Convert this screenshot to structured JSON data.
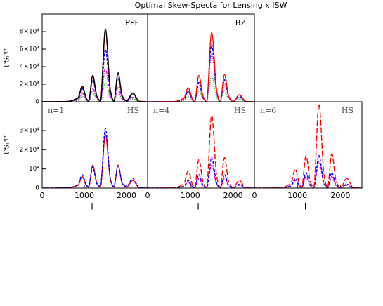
{
  "title": "Optimal Skew-Specta for Lensing x ISW",
  "chart_data": [
    {
      "type": "line",
      "labels": [
        "PPF"
      ],
      "xlim": [
        0,
        2500
      ],
      "ylim": [
        0,
        100000
      ],
      "ylabel": "l³Sₗᵒᵖᵗ",
      "yticks": [
        0,
        {
          "value": 20000,
          "label": "2×10⁴"
        },
        {
          "value": 40000,
          "label": "4×10⁴"
        },
        {
          "value": 60000,
          "label": "6×10⁴"
        },
        {
          "value": 80000,
          "label": "8×10⁴"
        }
      ],
      "x": [
        0,
        600,
        850,
        950,
        1050,
        1100,
        1200,
        1300,
        1380,
        1500,
        1620,
        1700,
        1800,
        1900,
        2000,
        2150,
        2300,
        2500
      ],
      "series": [
        {
          "color": "#00c000",
          "dash": "dotted",
          "values": [
            0,
            150,
            1500,
            6000,
            1200,
            400,
            10000,
            2000,
            400,
            22000,
            3300,
            400,
            11000,
            2200,
            400,
            3000,
            150,
            0
          ]
        },
        {
          "color": "#e000e0",
          "dash": "dashdot",
          "values": [
            0,
            200,
            2500,
            10000,
            2000,
            600,
            15000,
            3000,
            600,
            38000,
            5700,
            600,
            16000,
            3200,
            600,
            5000,
            250,
            0
          ]
        },
        {
          "color": "#0000ff",
          "dash": "dashed",
          "values": [
            0,
            250,
            3750,
            15000,
            3000,
            800,
            25000,
            5000,
            800,
            60000,
            9000,
            800,
            27000,
            5400,
            800,
            8000,
            400,
            0
          ]
        },
        {
          "color": "#ff0000",
          "dash": "solid",
          "values": [
            0,
            300,
            4250,
            17000,
            3400,
            1000,
            29000,
            5800,
            1000,
            80000,
            12000,
            1000,
            32000,
            6400,
            1000,
            10000,
            500,
            0
          ]
        },
        {
          "color": "#000000",
          "dash": "solid",
          "values": [
            0,
            300,
            4500,
            18000,
            3600,
            1000,
            30000,
            6000,
            1000,
            83000,
            12450,
            1000,
            33000,
            6600,
            1000,
            10000,
            500,
            0
          ]
        }
      ]
    },
    {
      "type": "line",
      "labels": [
        "BZ"
      ],
      "xlim": [
        0,
        2500
      ],
      "ylim": [
        0,
        100000
      ],
      "x": [
        0,
        600,
        850,
        950,
        1050,
        1100,
        1200,
        1300,
        1380,
        1500,
        1620,
        1700,
        1800,
        1900,
        2000,
        2150,
        2300,
        2500
      ],
      "series": [
        {
          "color": "#00c000",
          "dash": "dotted",
          "values": [
            0,
            100,
            1500,
            6000,
            1200,
            200,
            12000,
            2400,
            200,
            30000,
            4500,
            200,
            13000,
            2600,
            200,
            3000,
            150,
            0
          ]
        },
        {
          "color": "#e000e0",
          "dash": "dotted",
          "values": [
            0,
            150,
            2500,
            10000,
            2000,
            300,
            18000,
            3600,
            300,
            55000,
            8250,
            300,
            20000,
            4000,
            300,
            5000,
            250,
            0
          ]
        },
        {
          "color": "#0000ff",
          "dash": "dashed",
          "values": [
            0,
            150,
            3000,
            12000,
            2400,
            300,
            22000,
            4400,
            300,
            65000,
            9750,
            300,
            25000,
            5000,
            300,
            6000,
            300,
            0
          ]
        },
        {
          "color": "#ff0000",
          "dash": "solid",
          "values": [
            0,
            200,
            4000,
            16000,
            3200,
            300,
            30000,
            6000,
            300,
            79000,
            11850,
            300,
            31000,
            6200,
            300,
            8000,
            400,
            0
          ]
        }
      ]
    },
    {
      "type": "line",
      "labels": [
        "n=1",
        "HS"
      ],
      "xlim": [
        0,
        2500
      ],
      "ylim": [
        0,
        45000
      ],
      "ylabel": "l³Sₗᵒᵖᵗ",
      "xlabel": "l",
      "xticks": [
        0,
        1000,
        2000
      ],
      "yticks": [
        0,
        {
          "value": 10000,
          "label": "10⁴"
        },
        {
          "value": 20000,
          "label": "2×10⁴"
        },
        {
          "value": 30000,
          "label": "3×10⁴"
        }
      ],
      "x": [
        0,
        600,
        850,
        950,
        1050,
        1100,
        1200,
        1300,
        1380,
        1500,
        1620,
        1700,
        1800,
        1900,
        2000,
        2150,
        2300,
        2500
      ],
      "series": [
        {
          "color": "#ff0000",
          "dash": "solid",
          "values": [
            0,
            100,
            1500,
            6000,
            1200,
            500,
            12000,
            2400,
            500,
            28000,
            4200,
            500,
            12000,
            2400,
            500,
            4000,
            200,
            0
          ]
        },
        {
          "color": "#0000ff",
          "dash": "dashed",
          "values": [
            0,
            150,
            1750,
            7000,
            1400,
            800,
            11000,
            2200,
            800,
            31000,
            4650,
            800,
            12000,
            2400,
            800,
            5000,
            250,
            0
          ]
        }
      ]
    },
    {
      "type": "line",
      "labels": [
        "n=4",
        "HS"
      ],
      "xlim": [
        0,
        2500
      ],
      "ylim": [
        0,
        45000
      ],
      "xlabel": "l",
      "xticks": [
        0,
        1000,
        2000
      ],
      "x": [
        0,
        600,
        850,
        950,
        1050,
        1100,
        1200,
        1300,
        1380,
        1500,
        1620,
        1700,
        1800,
        1900,
        2000,
        2150,
        2300,
        2500
      ],
      "series": [
        {
          "color": "#e000e0",
          "dash": "dashed",
          "values": [
            0,
            50,
            750,
            3000,
            600,
            200,
            5000,
            1000,
            200,
            12000,
            1800,
            200,
            5000,
            1000,
            200,
            1500,
            75,
            0
          ]
        },
        {
          "color": "#0000ff",
          "dash": "dashed",
          "values": [
            0,
            50,
            1000,
            4000,
            800,
            300,
            7000,
            1400,
            300,
            16000,
            2400,
            300,
            7000,
            1400,
            300,
            2000,
            100,
            0
          ]
        },
        {
          "color": "#ff0000",
          "dash": "longdash",
          "values": [
            0,
            100,
            2250,
            9000,
            1800,
            300,
            15000,
            3000,
            300,
            38000,
            5700,
            300,
            16000,
            3200,
            300,
            4000,
            200,
            0
          ]
        }
      ]
    },
    {
      "type": "line",
      "labels": [
        "n=6",
        "HS"
      ],
      "xlim": [
        0,
        2500
      ],
      "ylim": [
        0,
        45000
      ],
      "xlabel": "l",
      "xticks": [
        0,
        1000,
        2000
      ],
      "x": [
        0,
        600,
        850,
        950,
        1050,
        1100,
        1200,
        1300,
        1380,
        1500,
        1620,
        1700,
        1800,
        1900,
        2000,
        2150,
        2300,
        2500
      ],
      "series": [
        {
          "color": "#e000e0",
          "dash": "dashed",
          "values": [
            0,
            50,
            1000,
            4000,
            800,
            200,
            6000,
            1200,
            200,
            14000,
            2100,
            200,
            6000,
            1200,
            200,
            1500,
            75,
            0
          ]
        },
        {
          "color": "#0000ff",
          "dash": "dashed",
          "values": [
            0,
            50,
            1250,
            5000,
            1000,
            300,
            8000,
            1600,
            300,
            17000,
            2550,
            300,
            8000,
            1600,
            300,
            2000,
            100,
            0
          ]
        },
        {
          "color": "#ff0000",
          "dash": "longdash",
          "values": [
            0,
            100,
            2500,
            10000,
            2000,
            300,
            17000,
            3400,
            300,
            44000,
            6600,
            300,
            18000,
            3600,
            300,
            5000,
            250,
            0
          ]
        }
      ]
    }
  ]
}
